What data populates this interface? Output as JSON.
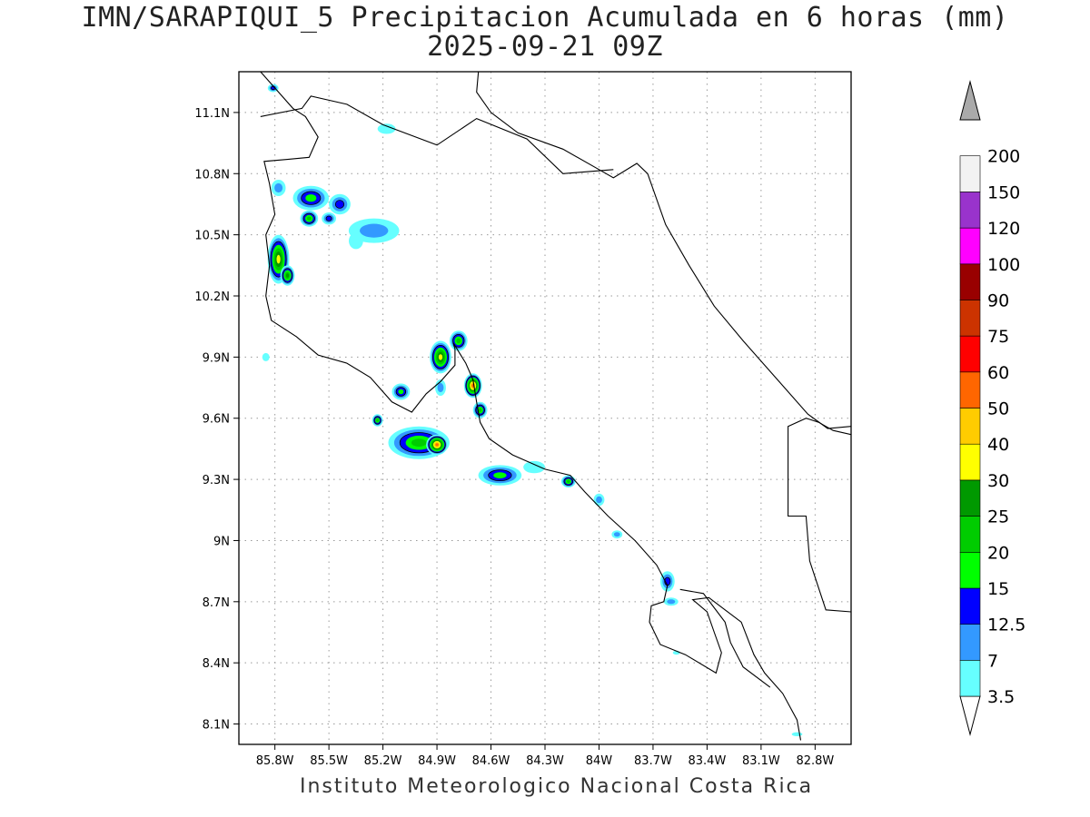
{
  "title": {
    "line1": "IMN/SARAPIQUI_5 Precipitacion Acumulada en 6 horas (mm)",
    "line2": "2025-09-21 09Z"
  },
  "footer": "Instituto Meteorologico Nacional Costa Rica",
  "map": {
    "lon_range": [
      -86.0,
      -82.6
    ],
    "lat_range": [
      8.0,
      11.3
    ],
    "lon_ticks": [
      {
        "value": -85.8,
        "label": "85.8W"
      },
      {
        "value": -85.5,
        "label": "85.5W"
      },
      {
        "value": -85.2,
        "label": "85.2W"
      },
      {
        "value": -84.9,
        "label": "84.9W"
      },
      {
        "value": -84.6,
        "label": "84.6W"
      },
      {
        "value": -84.3,
        "label": "84.3W"
      },
      {
        "value": -84.0,
        "label": "84W"
      },
      {
        "value": -83.7,
        "label": "83.7W"
      },
      {
        "value": -83.4,
        "label": "83.4W"
      },
      {
        "value": -83.1,
        "label": "83.1W"
      },
      {
        "value": -82.8,
        "label": "82.8W"
      }
    ],
    "lat_ticks": [
      {
        "value": 11.1,
        "label": "11.1N"
      },
      {
        "value": 10.8,
        "label": "10.8N"
      },
      {
        "value": 10.5,
        "label": "10.5N"
      },
      {
        "value": 10.2,
        "label": "10.2N"
      },
      {
        "value": 9.9,
        "label": "9.9N"
      },
      {
        "value": 9.6,
        "label": "9.6N"
      },
      {
        "value": 9.3,
        "label": "9.3N"
      },
      {
        "value": 9.0,
        "label": "9N"
      },
      {
        "value": 8.7,
        "label": "8.7N"
      },
      {
        "value": 8.4,
        "label": "8.4N"
      },
      {
        "value": 8.1,
        "label": "8.1N"
      }
    ],
    "grid": true
  },
  "colorbar": {
    "levels": [
      {
        "label": "3.5",
        "color": "#66ffff"
      },
      {
        "label": "7",
        "color": "#3399ff"
      },
      {
        "label": "12.5",
        "color": "#0000ff"
      },
      {
        "label": "15",
        "color": "#00ff00"
      },
      {
        "label": "20",
        "color": "#00cc00"
      },
      {
        "label": "25",
        "color": "#009900"
      },
      {
        "label": "30",
        "color": "#ffff00"
      },
      {
        "label": "40",
        "color": "#ffcc00"
      },
      {
        "label": "50",
        "color": "#ff6600"
      },
      {
        "label": "60",
        "color": "#ff0000"
      },
      {
        "label": "75",
        "color": "#cc3300"
      },
      {
        "label": "90",
        "color": "#990000"
      },
      {
        "label": "100",
        "color": "#ff00ff"
      },
      {
        "label": "120",
        "color": "#9933cc"
      },
      {
        "label": "150",
        "color": "#f2f2f2"
      },
      {
        "label": "200",
        "color": "#aaaaaa"
      }
    ],
    "below_color": "#ffffff",
    "above_color": "#aaaaaa"
  },
  "precip_cells": [
    {
      "lon": -85.81,
      "lat": 11.22,
      "r": [
        0.03,
        0.02
      ],
      "level": 2
    },
    {
      "lon": -85.18,
      "lat": 11.02,
      "r": [
        0.05,
        0.025
      ],
      "level": 0
    },
    {
      "lon": -85.78,
      "lat": 10.73,
      "r": [
        0.04,
        0.04
      ],
      "level": 1
    },
    {
      "lon": -85.6,
      "lat": 10.68,
      "r": [
        0.1,
        0.06
      ],
      "level": 3
    },
    {
      "lon": -85.44,
      "lat": 10.65,
      "r": [
        0.06,
        0.05
      ],
      "level": 2
    },
    {
      "lon": -85.61,
      "lat": 10.58,
      "r": [
        0.05,
        0.04
      ],
      "level": 4
    },
    {
      "lon": -85.5,
      "lat": 10.58,
      "r": [
        0.04,
        0.03
      ],
      "level": 2
    },
    {
      "lon": -85.25,
      "lat": 10.52,
      "r": [
        0.14,
        0.06
      ],
      "level": 1
    },
    {
      "lon": -85.35,
      "lat": 10.47,
      "r": [
        0.04,
        0.04
      ],
      "level": 0
    },
    {
      "lon": -85.78,
      "lat": 10.38,
      "r": [
        0.06,
        0.12
      ],
      "level": 6
    },
    {
      "lon": -85.73,
      "lat": 10.3,
      "r": [
        0.04,
        0.05
      ],
      "level": 5
    },
    {
      "lon": -85.85,
      "lat": 9.9,
      "r": [
        0.02,
        0.02
      ],
      "level": 0
    },
    {
      "lon": -84.78,
      "lat": 9.98,
      "r": [
        0.05,
        0.05
      ],
      "level": 4
    },
    {
      "lon": -84.88,
      "lat": 9.9,
      "r": [
        0.06,
        0.08
      ],
      "level": 6
    },
    {
      "lon": -84.7,
      "lat": 9.76,
      "r": [
        0.05,
        0.06
      ],
      "level": 8
    },
    {
      "lon": -84.66,
      "lat": 9.64,
      "r": [
        0.04,
        0.04
      ],
      "level": 4
    },
    {
      "lon": -84.88,
      "lat": 9.75,
      "r": [
        0.03,
        0.04
      ],
      "level": 1
    },
    {
      "lon": -85.1,
      "lat": 9.73,
      "r": [
        0.05,
        0.04
      ],
      "level": 3
    },
    {
      "lon": -85.23,
      "lat": 9.59,
      "r": [
        0.03,
        0.03
      ],
      "level": 4
    },
    {
      "lon": -85.0,
      "lat": 9.48,
      "r": [
        0.17,
        0.08
      ],
      "level": 4
    },
    {
      "lon": -84.9,
      "lat": 9.47,
      "r": [
        0.06,
        0.05
      ],
      "level": 8
    },
    {
      "lon": -84.55,
      "lat": 9.32,
      "r": [
        0.12,
        0.05
      ],
      "level": 3
    },
    {
      "lon": -84.36,
      "lat": 9.36,
      "r": [
        0.06,
        0.03
      ],
      "level": 0
    },
    {
      "lon": -84.17,
      "lat": 9.29,
      "r": [
        0.04,
        0.03
      ],
      "level": 4
    },
    {
      "lon": -84.0,
      "lat": 9.2,
      "r": [
        0.03,
        0.03
      ],
      "level": 1
    },
    {
      "lon": -83.9,
      "lat": 9.03,
      "r": [
        0.03,
        0.02
      ],
      "level": 1
    },
    {
      "lon": -83.62,
      "lat": 8.8,
      "r": [
        0.04,
        0.05
      ],
      "level": 2
    },
    {
      "lon": -83.6,
      "lat": 8.7,
      "r": [
        0.04,
        0.02
      ],
      "level": 1
    },
    {
      "lon": -83.57,
      "lat": 8.45,
      "r": [
        0.02,
        0.01
      ],
      "level": 0
    },
    {
      "lon": -82.9,
      "lat": 8.05,
      "r": [
        0.03,
        0.01
      ],
      "level": 0
    }
  ]
}
